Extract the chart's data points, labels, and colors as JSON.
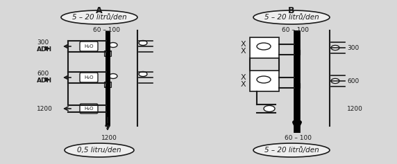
{
  "bg_color": "#d8d8d8",
  "fig_bg": "#c8c8c8",
  "title_A": "A",
  "title_B": "B",
  "label_top_A": "5 – 20 litrů/den",
  "label_top_B": "5 – 20 litrů/den",
  "label_bot_A": "0,5 litru/den",
  "label_bot_B": "5 – 20 litrů/den",
  "label_60_100_A": "60 – 100",
  "label_60_100_B": "60 – 100",
  "label_60_100_B_bot": "60 – 100",
  "label_300": "300",
  "label_600": "600",
  "label_1200_A": "1200",
  "label_1200_B": "1200",
  "label_1200_arr": "1200",
  "label_ADH1": "ADH",
  "label_ADH2": "ADH",
  "label_H2O1": "H₂O",
  "label_H2O2": "H₂O",
  "label_H2O3": "H₂O",
  "line_color": "#1a1a1a",
  "text_color": "#1a1a1a",
  "ellipse_fill": "#e8e8e8",
  "hatching_color": "#555555"
}
